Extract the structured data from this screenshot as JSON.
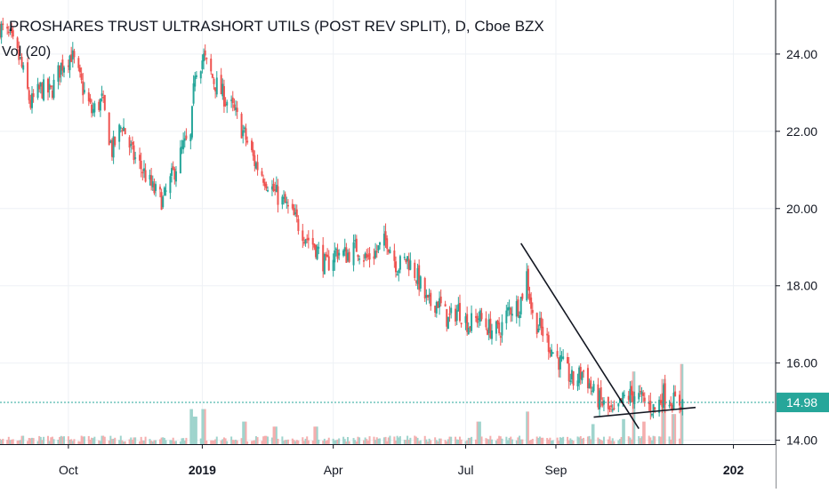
{
  "header": {
    "title": "PROSHARES TRUST ULTRASHORT UTILS (POST REV SPLIT), D, Cboe BZX",
    "volume_label": "Vol (20)"
  },
  "colors": {
    "up": "#26a69a",
    "down": "#ef5350",
    "vol_up": "#9fd4cd",
    "vol_down": "#f5aeae",
    "grid": "#eef1f5",
    "axis": "#131722",
    "price_line": "#26a69a",
    "trendline": "#131722"
  },
  "chart_data": {
    "type": "candlestick",
    "title": "PROSHARES TRUST ULTRASHORT UTILS (POST REV SPLIT), D, Cboe BZX",
    "y_axis": {
      "ticks": [
        "24.00",
        "22.00",
        "20.00",
        "18.00",
        "16.00",
        "14.00"
      ],
      "tick_values": [
        24,
        22,
        20,
        18,
        16,
        14
      ],
      "range": [
        13.9,
        25.4
      ],
      "position": "right"
    },
    "x_axis": {
      "ticks": [
        "Oct",
        "2019",
        "Apr",
        "Jul",
        "Sep",
        "202"
      ],
      "bold": [
        false,
        true,
        false,
        false,
        false,
        true
      ],
      "range": [
        "2018-08-15",
        "2020-01-30"
      ]
    },
    "current_price": "14.98",
    "current_value": 14.98,
    "grid": true,
    "anchors": [
      [
        "2018-08-15",
        24.7
      ],
      [
        "2018-08-22",
        24.4
      ],
      [
        "2018-08-29",
        23.8
      ],
      [
        "2018-09-05",
        22.7
      ],
      [
        "2018-09-12",
        23.1
      ],
      [
        "2018-09-19",
        23.0
      ],
      [
        "2018-09-26",
        23.7
      ],
      [
        "2018-10-03",
        24.0
      ],
      [
        "2018-10-10",
        23.2
      ],
      [
        "2018-10-17",
        22.5
      ],
      [
        "2018-10-24",
        22.8
      ],
      [
        "2018-10-31",
        21.5
      ],
      [
        "2018-11-07",
        22.2
      ],
      [
        "2018-11-14",
        21.4
      ],
      [
        "2018-11-21",
        21.0
      ],
      [
        "2018-11-28",
        20.5
      ],
      [
        "2018-12-05",
        20.2
      ],
      [
        "2018-12-12",
        20.9
      ],
      [
        "2018-12-19",
        21.6
      ],
      [
        "2018-12-24",
        21.8
      ],
      [
        "2018-12-27",
        23.6
      ],
      [
        "2019-01-02",
        23.9
      ],
      [
        "2019-01-09",
        23.3
      ],
      [
        "2019-01-16",
        22.9
      ],
      [
        "2019-01-23",
        22.5
      ],
      [
        "2019-01-30",
        21.9
      ],
      [
        "2019-02-06",
        21.2
      ],
      [
        "2019-02-13",
        20.8
      ],
      [
        "2019-02-20",
        20.4
      ],
      [
        "2019-02-27",
        20.1
      ],
      [
        "2019-03-06",
        19.7
      ],
      [
        "2019-03-13",
        19.3
      ],
      [
        "2019-03-20",
        19.0
      ],
      [
        "2019-03-27",
        18.5
      ],
      [
        "2019-04-03",
        18.9
      ],
      [
        "2019-04-10",
        18.8
      ],
      [
        "2019-04-17",
        19.0
      ],
      [
        "2019-04-24",
        18.7
      ],
      [
        "2019-05-01",
        18.9
      ],
      [
        "2019-05-08",
        19.2
      ],
      [
        "2019-05-15",
        18.5
      ],
      [
        "2019-05-22",
        18.7
      ],
      [
        "2019-05-29",
        18.2
      ],
      [
        "2019-06-05",
        17.5
      ],
      [
        "2019-06-12",
        17.6
      ],
      [
        "2019-06-19",
        17.1
      ],
      [
        "2019-06-26",
        17.4
      ],
      [
        "2019-07-03",
        17.0
      ],
      [
        "2019-07-10",
        17.2
      ],
      [
        "2019-07-17",
        16.9
      ],
      [
        "2019-07-24",
        16.8
      ],
      [
        "2019-07-31",
        17.4
      ],
      [
        "2019-08-07",
        17.5
      ],
      [
        "2019-08-12",
        18.3
      ],
      [
        "2019-08-16",
        17.2
      ],
      [
        "2019-08-23",
        16.8
      ],
      [
        "2019-08-30",
        16.3
      ],
      [
        "2019-09-06",
        15.9
      ],
      [
        "2019-09-13",
        15.5
      ],
      [
        "2019-09-20",
        15.8
      ],
      [
        "2019-09-27",
        15.2
      ],
      [
        "2019-10-04",
        14.9
      ],
      [
        "2019-10-11",
        14.6
      ],
      [
        "2019-10-18",
        15.1
      ],
      [
        "2019-10-25",
        15.2
      ],
      [
        "2019-11-01",
        15.0
      ],
      [
        "2019-11-08",
        14.8
      ],
      [
        "2019-11-14",
        15.2
      ],
      [
        "2019-11-21",
        15.0
      ],
      [
        "2019-11-27",
        14.98
      ]
    ],
    "volume": {
      "base_level": 0.05,
      "spikes": [
        [
          "2018-12-24",
          0.7
        ],
        [
          "2018-12-27",
          0.55
        ],
        [
          "2019-01-02",
          0.7
        ],
        [
          "2019-01-30",
          0.45
        ],
        [
          "2019-02-20",
          0.35
        ],
        [
          "2019-03-20",
          0.35
        ],
        [
          "2019-07-10",
          0.45
        ],
        [
          "2019-08-12",
          0.65
        ],
        [
          "2019-09-27",
          0.4
        ],
        [
          "2019-10-18",
          0.5
        ],
        [
          "2019-10-25",
          1.45
        ],
        [
          "2019-11-01",
          0.45
        ],
        [
          "2019-11-14",
          1.3
        ],
        [
          "2019-11-21",
          0.6
        ],
        [
          "2019-11-27",
          1.6
        ]
      ]
    },
    "trendlines": [
      {
        "start": [
          "2019-08-08",
          19.1
        ],
        "end": [
          "2019-10-28",
          14.3
        ]
      },
      {
        "start": [
          "2019-09-27",
          14.6
        ],
        "end": [
          "2019-12-06",
          14.85
        ]
      }
    ]
  }
}
